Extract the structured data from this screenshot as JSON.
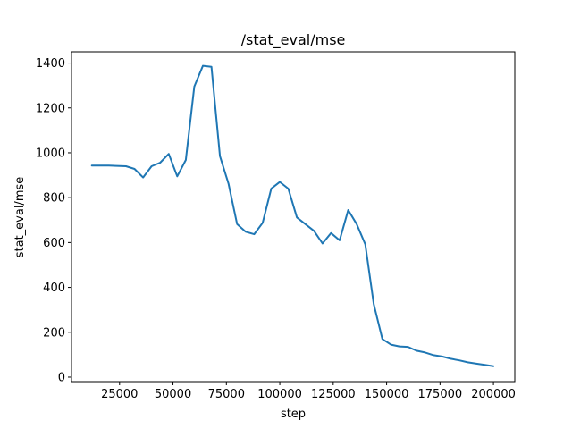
{
  "chart_data": {
    "type": "line",
    "title": "/stat_eval/mse",
    "xlabel": "step",
    "ylabel": "stat_eval/mse",
    "xlim": [
      2500,
      210000
    ],
    "ylim": [
      -20,
      1450
    ],
    "xticks": [
      25000,
      50000,
      75000,
      100000,
      125000,
      150000,
      175000,
      200000
    ],
    "xtick_labels": [
      "25000",
      "50000",
      "75000",
      "100000",
      "125000",
      "150000",
      "175000",
      "200000"
    ],
    "yticks": [
      0,
      200,
      400,
      600,
      800,
      1000,
      1200,
      1400
    ],
    "ytick_labels": [
      "0",
      "200",
      "400",
      "600",
      "800",
      "1000",
      "1200",
      "1400"
    ],
    "grid": false,
    "series": [
      {
        "color": "#1f77b4",
        "x": [
          12000,
          20000,
          28000,
          32000,
          36000,
          40000,
          44000,
          48000,
          52000,
          56000,
          60000,
          64000,
          68000,
          72000,
          76000,
          80000,
          84000,
          88000,
          92000,
          96000,
          100000,
          104000,
          108000,
          112000,
          116000,
          120000,
          124000,
          128000,
          132000,
          136000,
          140000,
          144000,
          148000,
          152000,
          156000,
          160000,
          164000,
          168000,
          172000,
          176000,
          180000,
          184000,
          188000,
          192000,
          196000,
          200000
        ],
        "y": [
          943,
          943,
          940,
          928,
          890,
          940,
          956,
          995,
          895,
          968,
          1295,
          1388,
          1383,
          985,
          862,
          682,
          648,
          637,
          688,
          840,
          870,
          840,
          712,
          682,
          652,
          596,
          642,
          610,
          745,
          682,
          592,
          325,
          170,
          145,
          137,
          135,
          118,
          110,
          98,
          92,
          82,
          75,
          66,
          60,
          55,
          49
        ]
      }
    ]
  }
}
